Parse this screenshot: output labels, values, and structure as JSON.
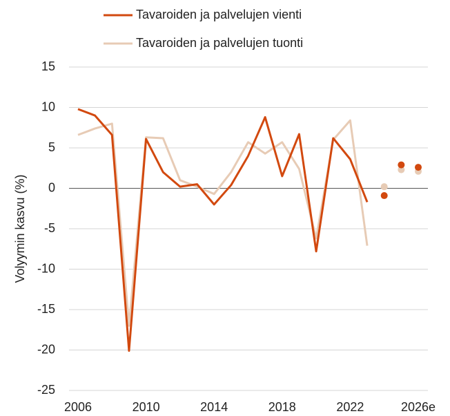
{
  "chart_data": {
    "type": "line",
    "y_label": "Volyymin kasvu (%)",
    "x": [
      2006,
      2007,
      2008,
      2009,
      2010,
      2011,
      2012,
      2013,
      2014,
      2015,
      2016,
      2017,
      2018,
      2019,
      2020,
      2021,
      2022,
      2023,
      2024,
      2025,
      2026
    ],
    "forecast_from": 2024,
    "series": [
      {
        "name": "Tavaroiden ja palvelujen vienti",
        "color": "#d2490f",
        "values": [
          9.8,
          9.0,
          6.6,
          -20.1,
          6.1,
          2.0,
          0.2,
          0.5,
          -2.0,
          0.4,
          4.0,
          8.8,
          1.5,
          6.7,
          -7.8,
          6.2,
          3.6,
          -1.7,
          -0.9,
          2.9,
          2.6
        ]
      },
      {
        "name": "Tavaroiden ja palvelujen tuonti",
        "color": "#e7cbb5",
        "values": [
          6.6,
          7.4,
          8.0,
          -17.0,
          6.3,
          6.2,
          1.0,
          0.2,
          -0.7,
          2.0,
          5.7,
          4.3,
          5.7,
          2.4,
          -6.2,
          6.0,
          8.4,
          -7.1,
          0.2,
          2.3,
          2.1
        ]
      }
    ],
    "xlim": [
      2006,
      2026
    ],
    "xticks": [
      2006,
      2010,
      2014,
      2018,
      2022,
      {
        "value": 2026,
        "label": "2026e"
      }
    ],
    "ylim": [
      -25,
      15
    ],
    "yticks": [
      -25,
      -20,
      -15,
      -10,
      -5,
      0,
      5,
      10,
      15
    ],
    "grid": true,
    "legend": "top"
  }
}
